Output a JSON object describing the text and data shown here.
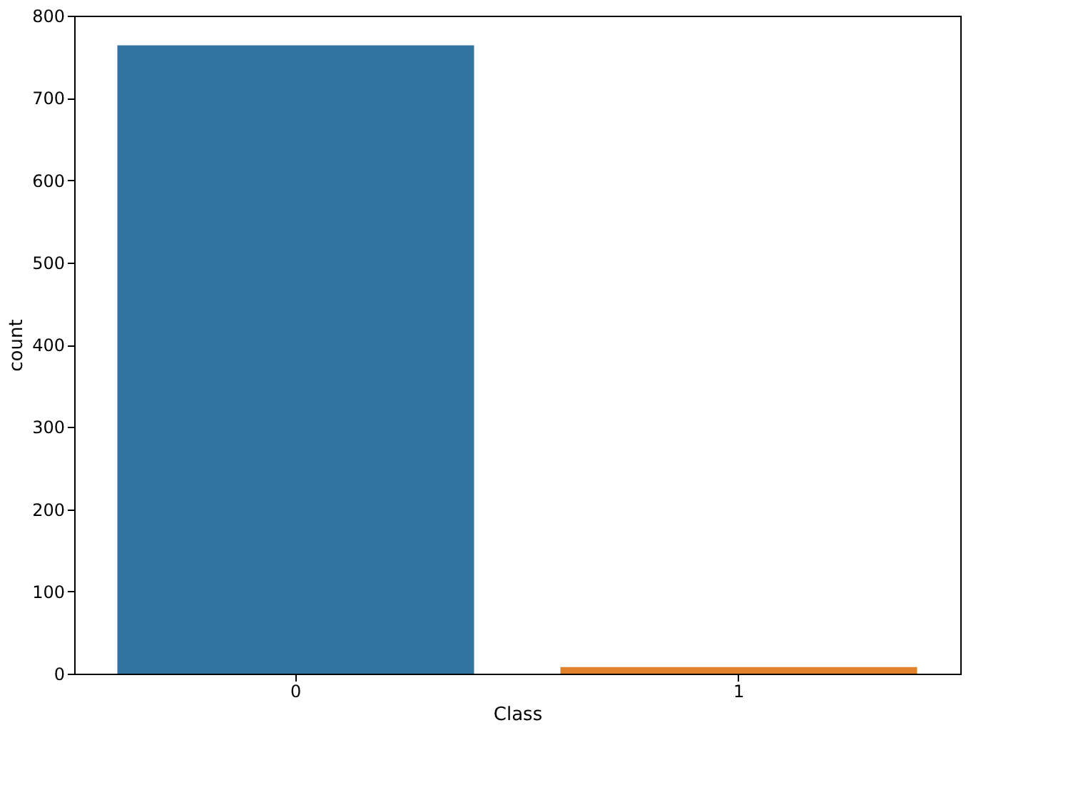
{
  "chart_data": {
    "type": "bar",
    "xlabel": "Class",
    "ylabel": "count",
    "categories": [
      "0",
      "1"
    ],
    "values": [
      764,
      8
    ],
    "colors": [
      "#3274a1",
      "#e1812c"
    ],
    "ylim": [
      0,
      800
    ],
    "yticks": [
      0,
      100,
      200,
      300,
      400,
      500,
      600,
      700,
      800
    ],
    "grid": false
  }
}
